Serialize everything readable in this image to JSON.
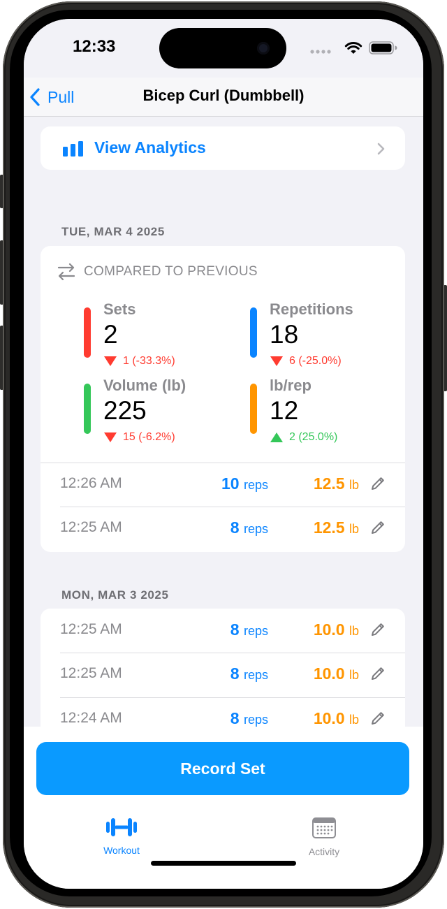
{
  "status_bar": {
    "time": "12:33"
  },
  "nav": {
    "back_label": "Pull",
    "title": "Bicep Curl (Dumbbell)"
  },
  "analytics": {
    "label": "View Analytics"
  },
  "sections": [
    {
      "date": "TUE, MAR 4 2025",
      "compare_label": "COMPARED TO PREVIOUS",
      "stats": [
        {
          "label": "Sets",
          "value": "2",
          "change": "1 (-33.3%)",
          "direction": "down",
          "color": "#ff3b30"
        },
        {
          "label": "Repetitions",
          "value": "18",
          "change": "6 (-25.0%)",
          "direction": "down",
          "color": "#0a84ff"
        },
        {
          "label": "Volume (lb)",
          "value": "225",
          "change": "15 (-6.2%)",
          "direction": "down",
          "color": "#34c759"
        },
        {
          "label": "lb/rep",
          "value": "12",
          "change": "2 (25.0%)",
          "direction": "up",
          "color": "#ff9500"
        }
      ],
      "sets": [
        {
          "time": "12:26 AM",
          "reps": "10",
          "reps_unit": "reps",
          "weight": "12.5",
          "weight_unit": "lb"
        },
        {
          "time": "12:25 AM",
          "reps": "8",
          "reps_unit": "reps",
          "weight": "12.5",
          "weight_unit": "lb"
        }
      ]
    },
    {
      "date": "MON, MAR 3 2025",
      "sets": [
        {
          "time": "12:25 AM",
          "reps": "8",
          "reps_unit": "reps",
          "weight": "10.0",
          "weight_unit": "lb"
        },
        {
          "time": "12:25 AM",
          "reps": "8",
          "reps_unit": "reps",
          "weight": "10.0",
          "weight_unit": "lb"
        },
        {
          "time": "12:24 AM",
          "reps": "8",
          "reps_unit": "reps",
          "weight": "10.0",
          "weight_unit": "lb"
        }
      ]
    }
  ],
  "record_button": {
    "label": "Record Set"
  },
  "tabs": [
    {
      "label": "Workout",
      "icon": "dumbbell-icon",
      "active": true
    },
    {
      "label": "Activity",
      "icon": "calendar-icon",
      "active": false
    }
  ],
  "colors": {
    "accent": "#0a84ff",
    "weight": "#ff9500",
    "record": "#0a9aff",
    "inactive": "#8e8e93"
  }
}
